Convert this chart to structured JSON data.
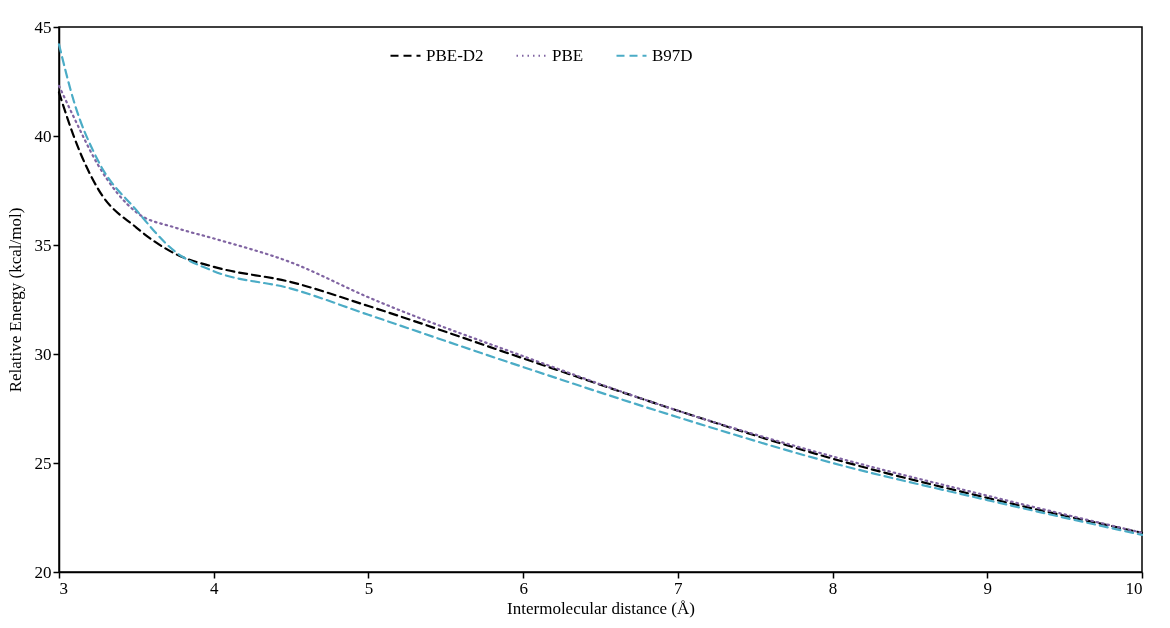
{
  "chart_data": {
    "type": "line",
    "xlabel": "Intermolecular distance (Å)",
    "ylabel": "Relative Energy (kcal/mol)",
    "x": [
      3,
      3.1,
      3.25,
      3.5,
      3.75,
      4,
      4.5,
      5,
      6,
      7,
      8,
      9,
      10
    ],
    "series": [
      {
        "name": "PBE-D2",
        "color": "#000000",
        "line_style": "dashed",
        "values": [
          42.0,
          39.9,
          37.6,
          35.8,
          34.6,
          34.0,
          33.3,
          32.2,
          29.8,
          27.4,
          25.2,
          23.4,
          21.8
        ]
      },
      {
        "name": "PBE",
        "color": "#8064a2",
        "line_style": "dotted",
        "values": [
          42.3,
          40.8,
          38.7,
          36.5,
          35.8,
          35.3,
          34.2,
          32.6,
          29.9,
          27.4,
          25.3,
          23.5,
          21.8
        ]
      },
      {
        "name": "B97D",
        "color": "#4bacc6",
        "line_style": "dashed",
        "values": [
          44.2,
          41.5,
          38.9,
          36.6,
          34.7,
          33.8,
          33.0,
          31.8,
          29.4,
          27.1,
          25.0,
          23.3,
          21.7
        ]
      }
    ],
    "xlim": [
      3,
      10
    ],
    "xticks": [
      3,
      4,
      5,
      6,
      7,
      8,
      9,
      10
    ],
    "ylim": [
      20,
      45
    ],
    "yticks": [
      20,
      25,
      30,
      35,
      40,
      45
    ],
    "grid": false,
    "legend": "top",
    "marker": "none"
  }
}
